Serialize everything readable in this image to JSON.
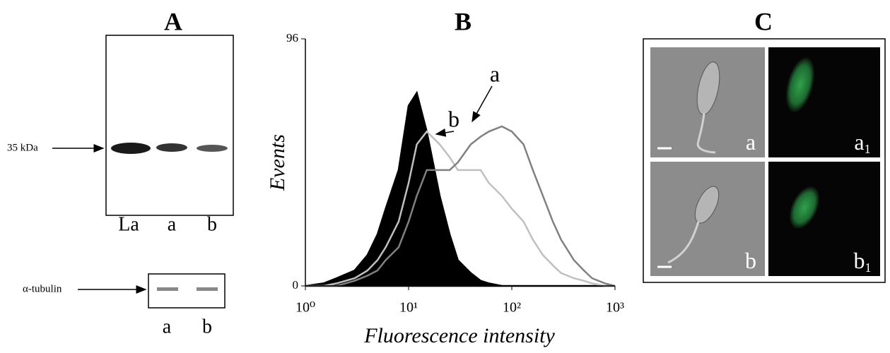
{
  "panel_a": {
    "title": "A",
    "blot": {
      "marker": "35 kDa",
      "lanes": [
        "La",
        "a",
        "b"
      ]
    },
    "tubulin": {
      "marker": "α-tubulin",
      "lanes": [
        "a",
        "b"
      ]
    }
  },
  "panel_b": {
    "title": "B",
    "chart_data": {
      "type": "area",
      "xscale": "log",
      "x_label": "Fluorescence intensity",
      "y_label": "Events",
      "xlim": [
        1,
        1000
      ],
      "xticks": [
        {
          "value": 1,
          "label": "10⁰"
        },
        {
          "value": 10,
          "label": "10¹"
        },
        {
          "value": 100,
          "label": "10²"
        },
        {
          "value": 1000,
          "label": "10³"
        }
      ],
      "ylim": [
        0,
        96
      ],
      "yticks": [
        0,
        96
      ],
      "x": [
        1,
        1.5,
        2,
        3,
        4,
        5,
        6,
        8,
        10,
        12,
        15,
        20,
        25,
        30,
        40,
        50,
        60,
        80,
        100,
        130,
        160,
        200,
        250,
        300,
        400,
        500,
        600,
        800,
        1000
      ],
      "series": [
        {
          "color": "#000000",
          "filled": true,
          "values": [
            0,
            1,
            3,
            6,
            12,
            20,
            30,
            45,
            70,
            75,
            60,
            35,
            20,
            10,
            5,
            2,
            1,
            0,
            0,
            0,
            0,
            0,
            0,
            0,
            0,
            0,
            0,
            0,
            0
          ]
        },
        {
          "color": "#c0c0c0",
          "filled": false,
          "values": [
            0,
            0,
            1,
            3,
            6,
            10,
            15,
            25,
            40,
            55,
            60,
            55,
            50,
            45,
            45,
            45,
            40,
            35,
            30,
            25,
            18,
            12,
            8,
            5,
            3,
            2,
            1,
            0,
            0
          ]
        },
        {
          "color": "#808080",
          "filled": false,
          "values": [
            0,
            0,
            0,
            2,
            4,
            6,
            10,
            15,
            25,
            35,
            45,
            45,
            45,
            48,
            55,
            58,
            60,
            62,
            60,
            55,
            45,
            35,
            25,
            18,
            10,
            6,
            3,
            1,
            0
          ]
        }
      ],
      "annotations": [
        "b",
        "a"
      ]
    }
  },
  "panel_c": {
    "title": "C",
    "images": [
      {
        "label": "a",
        "sub": null
      },
      {
        "label": "a",
        "sub": "1"
      },
      {
        "label": "b",
        "sub": null
      },
      {
        "label": "b",
        "sub": "1"
      }
    ]
  }
}
